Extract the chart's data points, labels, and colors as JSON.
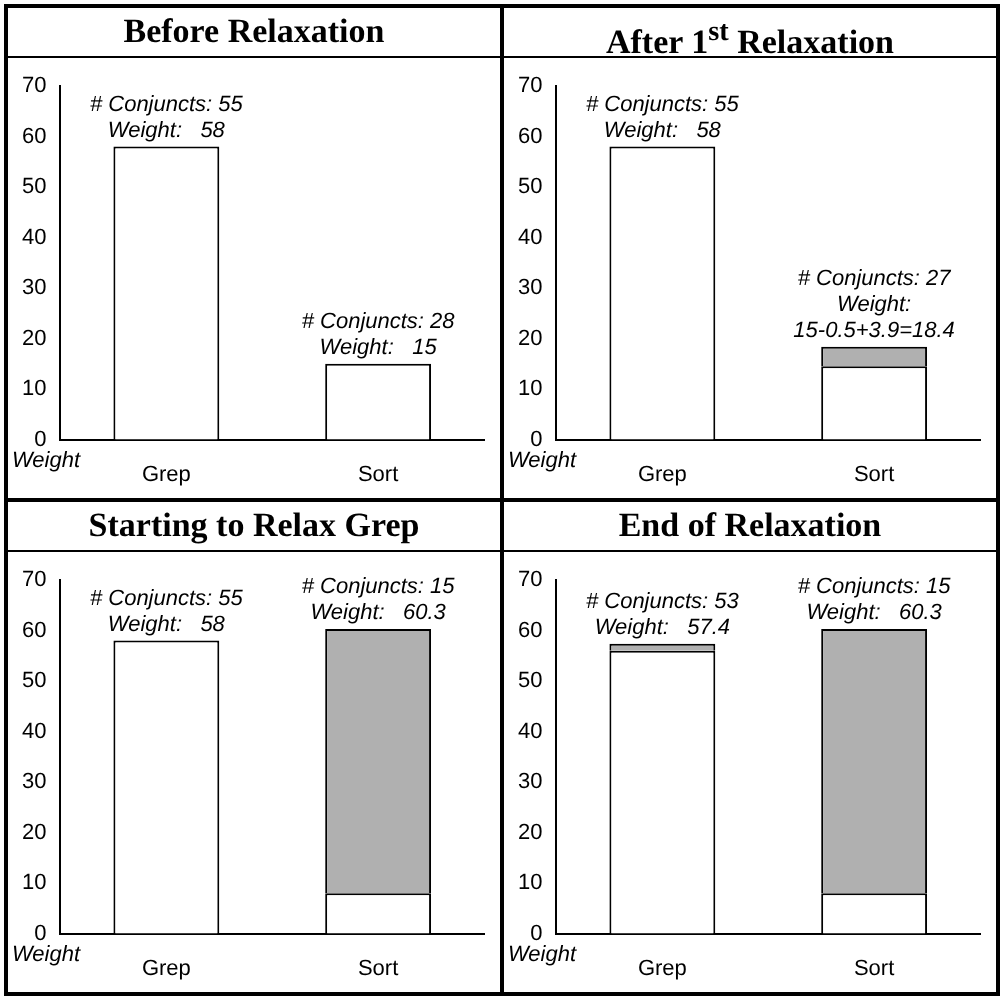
{
  "chart_data": [
    {
      "type": "bar",
      "title": "Before Relaxation",
      "ylabel": "Weight",
      "categories": [
        "Grep",
        "Sort"
      ],
      "stacked": true,
      "ylim": [
        0,
        70
      ],
      "yticks": [
        0,
        10,
        20,
        30,
        40,
        50,
        60,
        70
      ],
      "grid": false,
      "legend": false,
      "series": [
        {
          "color": "#ffffff",
          "values": [
            58,
            15
          ]
        }
      ],
      "annotations": [
        {
          "text": "# Conjuncts: 55\nWeight:   58",
          "x": "Grep",
          "y": 58
        },
        {
          "text": "# Conjuncts: 28\nWeight:   15",
          "x": "Sort",
          "y": 15
        }
      ]
    },
    {
      "type": "bar",
      "title": "After 1$^{st}$ Relaxation",
      "ylabel": "Weight",
      "categories": [
        "Grep",
        "Sort"
      ],
      "stacked": true,
      "ylim": [
        0,
        70
      ],
      "yticks": [
        0,
        10,
        20,
        30,
        40,
        50,
        60,
        70
      ],
      "grid": false,
      "legend": false,
      "series": [
        {
          "color": "#ffffff",
          "values": [
            58,
            14.5
          ]
        },
        {
          "color": "#b0b0b0",
          "values": [
            null,
            3.9
          ]
        }
      ],
      "annotations": [
        {
          "text": "# Conjuncts: 55\nWeight:   58",
          "x": "Grep",
          "y": 58
        },
        {
          "text": "# Conjuncts: 27\nWeight:\n15-0.5+3.9=18.4",
          "x": "Sort",
          "y": 18.4
        }
      ]
    },
    {
      "type": "bar",
      "title": "Starting to Relax Grep",
      "ylabel": "Weight",
      "categories": [
        "Grep",
        "Sort"
      ],
      "stacked": true,
      "ylim": [
        0,
        70
      ],
      "yticks": [
        0,
        10,
        20,
        30,
        40,
        50,
        60,
        70
      ],
      "grid": false,
      "legend": false,
      "series": [
        {
          "color": "#ffffff",
          "values": [
            58,
            8
          ]
        },
        {
          "color": "#b0b0b0",
          "values": [
            null,
            52.3
          ]
        }
      ],
      "annotations": [
        {
          "text": "# Conjuncts: 55\nWeight:   58",
          "x": "Grep",
          "y": 58
        },
        {
          "text": "# Conjuncts: 15\nWeight:   60.3",
          "x": "Sort",
          "y": 60.3
        }
      ]
    },
    {
      "type": "bar",
      "title": "End of Relaxation",
      "ylabel": "Weight",
      "categories": [
        "Grep",
        "Sort"
      ],
      "stacked": true,
      "ylim": [
        0,
        70
      ],
      "yticks": [
        0,
        10,
        20,
        30,
        40,
        50,
        60,
        70
      ],
      "grid": false,
      "legend": false,
      "series": [
        {
          "color": "#ffffff",
          "values": [
            56,
            8
          ]
        },
        {
          "color": "#b0b0b0",
          "values": [
            1.4,
            52.3
          ]
        }
      ],
      "annotations": [
        {
          "text": "# Conjuncts: 53\nWeight:   57.4",
          "x": "Grep",
          "y": 57.4
        },
        {
          "text": "# Conjuncts: 15\nWeight:   60.3",
          "x": "Sort",
          "y": 60.3
        }
      ]
    }
  ]
}
